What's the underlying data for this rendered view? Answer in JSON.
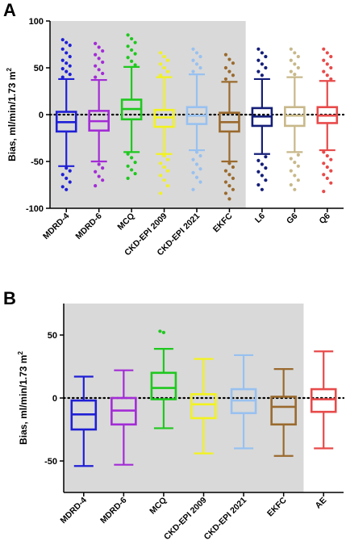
{
  "chart_data": [
    {
      "panel": "A",
      "type": "box",
      "ylabel": "Bias, ml/min/1.73 m",
      "ylabel_sup": "2",
      "ylim": [
        -100,
        100
      ],
      "yticks": [
        100,
        50,
        0,
        -50,
        -100
      ],
      "reference_line": 0,
      "shaded_region_categories": [
        "MDRD-4",
        "MDRD-6",
        "MCQ",
        "CKD-EPI 2009",
        "CKD-EPI 2021",
        "EKFC"
      ],
      "categories": [
        "MDRD-4",
        "MDRD-6",
        "MCQ",
        "CKD-EPI 2009",
        "CKD-EPI 2021",
        "EKFC",
        "L6",
        "G6",
        "Q6"
      ],
      "series": [
        {
          "color": "#1f1fd6",
          "whisker_low": -55,
          "q1": -18,
          "median": -8,
          "q3": 3,
          "whisker_high": 38,
          "outliers_high": [
            80,
            77,
            74,
            70,
            66,
            62,
            58,
            55,
            52,
            49,
            46,
            43,
            40
          ],
          "outliers_low": [
            -57,
            -60,
            -64,
            -68,
            -72,
            -77,
            -80
          ]
        },
        {
          "color": "#a32cd6",
          "whisker_low": -50,
          "q1": -17,
          "median": -7,
          "q3": 4,
          "whisker_high": 37,
          "outliers_high": [
            76,
            72,
            68,
            64,
            60,
            56,
            52,
            48,
            44,
            40
          ],
          "outliers_low": [
            -53,
            -57,
            -61,
            -66,
            -70,
            -76
          ]
        },
        {
          "color": "#1ec81e",
          "whisker_low": -40,
          "q1": -5,
          "median": 6,
          "q3": 16,
          "whisker_high": 51,
          "outliers_high": [
            85,
            81,
            77,
            73,
            69,
            65,
            61,
            57,
            53
          ],
          "outliers_low": [
            -42,
            -46,
            -51,
            -55,
            -59,
            -63,
            -68
          ]
        },
        {
          "color": "#f2f21e",
          "whisker_low": -42,
          "q1": -13,
          "median": -3,
          "q3": 5,
          "whisker_high": 40,
          "outliers_high": [
            66,
            62,
            58,
            54,
            50,
            46,
            42
          ],
          "outliers_low": [
            -44,
            -48,
            -52,
            -56,
            -60,
            -65,
            -70,
            -76,
            -84
          ]
        },
        {
          "color": "#98c1f0",
          "whisker_low": -38,
          "q1": -10,
          "median": -1,
          "q3": 8,
          "whisker_high": 43,
          "outliers_high": [
            70,
            66,
            62,
            58,
            54,
            50,
            46
          ],
          "outliers_low": [
            -40,
            -44,
            -48,
            -53,
            -58,
            -62,
            -67,
            -72,
            -80
          ]
        },
        {
          "color": "#9a6a2e",
          "whisker_low": -50,
          "q1": -18,
          "median": -8,
          "q3": 2,
          "whisker_high": 35,
          "outliers_high": [
            64,
            59,
            55,
            50,
            46,
            42,
            38
          ],
          "outliers_low": [
            -52,
            -56,
            -60,
            -64,
            -68,
            -72,
            -76,
            -80,
            -84,
            -90
          ]
        },
        {
          "color": "#141e78",
          "whisker_low": -42,
          "q1": -12,
          "median": -2,
          "q3": 7,
          "whisker_high": 38,
          "outliers_high": [
            70,
            66,
            62,
            58,
            54,
            50,
            46,
            42
          ],
          "outliers_low": [
            -45,
            -49,
            -53,
            -57,
            -61,
            -65,
            -70,
            -75,
            -80
          ]
        },
        {
          "color": "#c8b88a",
          "whisker_low": -40,
          "q1": -12,
          "median": -1,
          "q3": 8,
          "whisker_high": 40,
          "outliers_high": [
            70,
            66,
            62,
            58,
            54,
            50,
            46,
            43
          ],
          "outliers_low": [
            -43,
            -47,
            -51,
            -55,
            -60,
            -65,
            -70,
            -75,
            -80
          ]
        },
        {
          "color": "#e84a4a",
          "whisker_low": -38,
          "q1": -9,
          "median": -1,
          "q3": 8,
          "whisker_high": 36,
          "outliers_high": [
            70,
            66,
            62,
            58,
            54,
            50,
            46,
            42,
            38
          ],
          "outliers_low": [
            -40,
            -44,
            -48,
            -52,
            -56,
            -60,
            -64,
            -68,
            -73,
            -82
          ]
        }
      ]
    },
    {
      "panel": "B",
      "type": "box",
      "ylabel": "Bias, ml/min/1.73 m",
      "ylabel_sup": "2",
      "ylim": [
        -75,
        75
      ],
      "yticks": [
        50,
        0,
        -50
      ],
      "reference_line": 0,
      "shaded_region_categories": [
        "MDRD-4",
        "MDRD-6",
        "MCQ",
        "CKD-EPI 2009",
        "CKD-EPI 2021",
        "EKFC"
      ],
      "categories": [
        "MDRD-4",
        "MDRD-6",
        "MCQ",
        "CKD-EPI 2009",
        "CKD-EPI 2021",
        "EKFC",
        "AE"
      ],
      "series": [
        {
          "color": "#1f1fd6",
          "whisker_low": -54,
          "q1": -25,
          "median": -13,
          "q3": -2,
          "whisker_high": 17,
          "outliers_high": [],
          "outliers_low": []
        },
        {
          "color": "#a32cd6",
          "whisker_low": -53,
          "q1": -21,
          "median": -10,
          "q3": 0,
          "whisker_high": 22,
          "outliers_high": [],
          "outliers_low": []
        },
        {
          "color": "#1ec81e",
          "whisker_low": -24,
          "q1": -1,
          "median": 8,
          "q3": 20,
          "whisker_high": 39,
          "outliers_high": [
            53,
            52
          ],
          "outliers_low": []
        },
        {
          "color": "#f2f21e",
          "whisker_low": -44,
          "q1": -16,
          "median": -5,
          "q3": 3,
          "whisker_high": 31,
          "outliers_high": [],
          "outliers_low": []
        },
        {
          "color": "#98c1f0",
          "whisker_low": -40,
          "q1": -12,
          "median": -2,
          "q3": 7,
          "whisker_high": 34,
          "outliers_high": [],
          "outliers_low": []
        },
        {
          "color": "#9a6a2e",
          "whisker_low": -46,
          "q1": -21,
          "median": -7,
          "q3": 1,
          "whisker_high": 23,
          "outliers_high": [],
          "outliers_low": []
        },
        {
          "color": "#e84a4a",
          "whisker_low": -40,
          "q1": -11,
          "median": -1,
          "q3": 7,
          "whisker_high": 37,
          "outliers_high": [],
          "outliers_low": []
        }
      ]
    }
  ]
}
